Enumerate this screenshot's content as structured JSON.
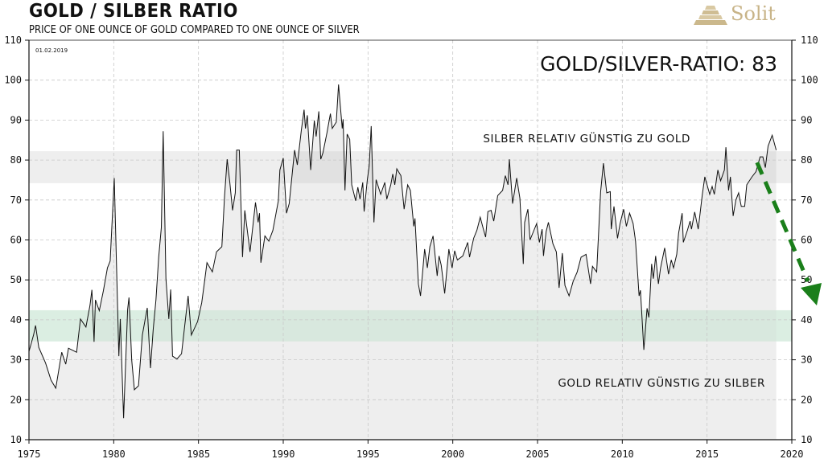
{
  "header": {
    "title": "GOLD / SILBER  RATIO",
    "subtitle": "PRICE OF ONE OUNCE OF GOLD COMPARED TO ONE OUNCE OF SILVER",
    "logo_text": "Solit"
  },
  "chart_data": {
    "type": "area",
    "title": "GOLD / SILBER RATIO",
    "date_label": "01.02.2019",
    "headline": "GOLD/SILVER-RATIO: 83",
    "xlim": [
      1975,
      2020
    ],
    "ylim": [
      10,
      110
    ],
    "xticks": [
      1975,
      1980,
      1985,
      1990,
      1995,
      2000,
      2005,
      2010,
      2015,
      2020
    ],
    "yticks": [
      10,
      20,
      30,
      40,
      50,
      60,
      70,
      80,
      90,
      100,
      110
    ],
    "grid": true,
    "bands": [
      {
        "name": "silver-cheap-band",
        "range": [
          74.2,
          82.2
        ],
        "label": "SILBER RELATIV GÜNSTIG ZU GOLD",
        "color": "#eeeeee"
      },
      {
        "name": "gold-cheap-band",
        "range": [
          34.6,
          42.4
        ],
        "label": "GOLD RELATIV GÜNSTIG ZU SILBER",
        "color": "#dbeee2"
      }
    ],
    "arrow": {
      "from": [
        2018.9,
        81
      ],
      "to": [
        2020.7,
        45
      ],
      "color": "#1a7f1a",
      "style": "dashed"
    },
    "colors": {
      "line": "#111111",
      "area": "#eeeeee"
    },
    "series": [
      {
        "name": "Gold/Silver Ratio",
        "points": [
          [
            1975.0,
            32.1
          ],
          [
            1975.27,
            36.2
          ],
          [
            1975.39,
            38.6
          ],
          [
            1975.58,
            33.1
          ],
          [
            1975.98,
            29.2
          ],
          [
            1976.3,
            24.9
          ],
          [
            1976.58,
            22.9
          ],
          [
            1976.93,
            31.9
          ],
          [
            1977.17,
            28.9
          ],
          [
            1977.33,
            32.9
          ],
          [
            1977.81,
            31.9
          ],
          [
            1978.04,
            40.2
          ],
          [
            1978.36,
            38.2
          ],
          [
            1978.6,
            43.6
          ],
          [
            1978.71,
            47.5
          ],
          [
            1978.84,
            34.5
          ],
          [
            1978.92,
            45.0
          ],
          [
            1979.15,
            42.3
          ],
          [
            1979.39,
            47.3
          ],
          [
            1979.63,
            53.0
          ],
          [
            1979.79,
            54.7
          ],
          [
            1980.03,
            75.5
          ],
          [
            1980.3,
            30.9
          ],
          [
            1980.39,
            40.2
          ],
          [
            1980.58,
            15.4
          ],
          [
            1980.82,
            42.6
          ],
          [
            1980.9,
            45.6
          ],
          [
            1981.06,
            29.9
          ],
          [
            1981.22,
            22.5
          ],
          [
            1981.46,
            23.5
          ],
          [
            1981.69,
            36.2
          ],
          [
            1981.98,
            43.0
          ],
          [
            1982.17,
            27.9
          ],
          [
            1982.33,
            37.6
          ],
          [
            1982.49,
            45.0
          ],
          [
            1982.65,
            55.7
          ],
          [
            1982.81,
            63.1
          ],
          [
            1982.92,
            87.2
          ],
          [
            1983.08,
            50.3
          ],
          [
            1983.25,
            40.2
          ],
          [
            1983.36,
            47.6
          ],
          [
            1983.47,
            30.9
          ],
          [
            1983.73,
            30.2
          ],
          [
            1984.0,
            31.5
          ],
          [
            1984.27,
            41.6
          ],
          [
            1984.39,
            46.0
          ],
          [
            1984.58,
            36.2
          ],
          [
            1984.95,
            39.6
          ],
          [
            1985.19,
            44.3
          ],
          [
            1985.35,
            49.3
          ],
          [
            1985.5,
            54.3
          ],
          [
            1985.82,
            52.0
          ],
          [
            1986.06,
            57.0
          ],
          [
            1986.38,
            58.3
          ],
          [
            1986.54,
            71.1
          ],
          [
            1986.69,
            80.2
          ],
          [
            1986.85,
            74.4
          ],
          [
            1987.01,
            67.4
          ],
          [
            1987.17,
            71.8
          ],
          [
            1987.25,
            82.5
          ],
          [
            1987.41,
            82.5
          ],
          [
            1987.6,
            55.7
          ],
          [
            1987.73,
            67.4
          ],
          [
            1988.04,
            57.0
          ],
          [
            1988.36,
            69.4
          ],
          [
            1988.52,
            64.4
          ],
          [
            1988.6,
            66.7
          ],
          [
            1988.68,
            54.3
          ],
          [
            1988.92,
            61.0
          ],
          [
            1989.15,
            59.7
          ],
          [
            1989.39,
            62.4
          ],
          [
            1989.71,
            69.8
          ],
          [
            1989.8,
            77.5
          ],
          [
            1990.0,
            80.5
          ],
          [
            1990.19,
            66.7
          ],
          [
            1990.35,
            69.1
          ],
          [
            1990.67,
            82.5
          ],
          [
            1990.83,
            78.8
          ],
          [
            1991.07,
            87.5
          ],
          [
            1991.23,
            92.6
          ],
          [
            1991.31,
            87.9
          ],
          [
            1991.42,
            91.2
          ],
          [
            1991.62,
            77.5
          ],
          [
            1991.83,
            89.9
          ],
          [
            1991.94,
            85.9
          ],
          [
            1992.1,
            92.2
          ],
          [
            1992.21,
            80.2
          ],
          [
            1992.34,
            81.8
          ],
          [
            1992.58,
            86.9
          ],
          [
            1992.78,
            91.6
          ],
          [
            1992.89,
            87.9
          ],
          [
            1993.13,
            89.5
          ],
          [
            1993.26,
            98.9
          ],
          [
            1993.48,
            87.9
          ],
          [
            1993.53,
            90.2
          ],
          [
            1993.64,
            72.4
          ],
          [
            1993.77,
            86.5
          ],
          [
            1993.92,
            85.2
          ],
          [
            1994.04,
            73.8
          ],
          [
            1994.27,
            69.8
          ],
          [
            1994.4,
            73.2
          ],
          [
            1994.53,
            70.2
          ],
          [
            1994.69,
            74.4
          ],
          [
            1994.77,
            67.1
          ],
          [
            1994.96,
            75.1
          ],
          [
            1995.07,
            78.5
          ],
          [
            1995.19,
            88.5
          ],
          [
            1995.35,
            64.4
          ],
          [
            1995.48,
            75.1
          ],
          [
            1995.75,
            71.4
          ],
          [
            1995.99,
            74.4
          ],
          [
            1996.11,
            70.2
          ],
          [
            1996.34,
            73.8
          ],
          [
            1996.46,
            76.5
          ],
          [
            1996.58,
            73.8
          ],
          [
            1996.7,
            77.8
          ],
          [
            1996.94,
            76.1
          ],
          [
            1997.13,
            67.7
          ],
          [
            1997.34,
            73.8
          ],
          [
            1997.5,
            72.4
          ],
          [
            1997.7,
            63.4
          ],
          [
            1997.77,
            65.4
          ],
          [
            1997.97,
            49.0
          ],
          [
            1998.1,
            46.0
          ],
          [
            1998.34,
            57.7
          ],
          [
            1998.5,
            53.0
          ],
          [
            1998.65,
            58.3
          ],
          [
            1998.84,
            61.0
          ],
          [
            1999.08,
            51.0
          ],
          [
            1999.19,
            56.0
          ],
          [
            1999.32,
            53.7
          ],
          [
            1999.52,
            46.6
          ],
          [
            1999.77,
            57.7
          ],
          [
            1999.96,
            53.0
          ],
          [
            2000.11,
            57.3
          ],
          [
            2000.27,
            55.0
          ],
          [
            2000.59,
            56.0
          ],
          [
            2000.88,
            59.4
          ],
          [
            2000.99,
            55.7
          ],
          [
            2001.23,
            60.4
          ],
          [
            2001.42,
            62.4
          ],
          [
            2001.62,
            65.7
          ],
          [
            2001.78,
            63.1
          ],
          [
            2001.94,
            60.7
          ],
          [
            2002.07,
            67.1
          ],
          [
            2002.26,
            67.4
          ],
          [
            2002.42,
            64.7
          ],
          [
            2002.65,
            71.1
          ],
          [
            2002.94,
            72.4
          ],
          [
            2003.1,
            76.1
          ],
          [
            2003.26,
            73.8
          ],
          [
            2003.34,
            80.2
          ],
          [
            2003.53,
            69.1
          ],
          [
            2003.77,
            75.5
          ],
          [
            2003.96,
            70.4
          ],
          [
            2004.16,
            54.0
          ],
          [
            2004.24,
            64.4
          ],
          [
            2004.43,
            67.7
          ],
          [
            2004.56,
            60.0
          ],
          [
            2004.95,
            64.1
          ],
          [
            2005.11,
            59.4
          ],
          [
            2005.27,
            62.7
          ],
          [
            2005.35,
            56.0
          ],
          [
            2005.51,
            62.1
          ],
          [
            2005.64,
            64.4
          ],
          [
            2005.91,
            59.0
          ],
          [
            2006.11,
            57.0
          ],
          [
            2006.27,
            48.0
          ],
          [
            2006.46,
            56.7
          ],
          [
            2006.62,
            48.6
          ],
          [
            2006.86,
            46.0
          ],
          [
            2007.1,
            49.6
          ],
          [
            2007.34,
            52.0
          ],
          [
            2007.57,
            55.7
          ],
          [
            2007.86,
            56.4
          ],
          [
            2008.13,
            49.0
          ],
          [
            2008.24,
            53.4
          ],
          [
            2008.49,
            52.0
          ],
          [
            2008.72,
            72.1
          ],
          [
            2008.89,
            79.2
          ],
          [
            2009.08,
            71.8
          ],
          [
            2009.29,
            72.1
          ],
          [
            2009.35,
            62.7
          ],
          [
            2009.51,
            68.4
          ],
          [
            2009.72,
            60.4
          ],
          [
            2009.87,
            64.1
          ],
          [
            2010.08,
            67.7
          ],
          [
            2010.24,
            63.4
          ],
          [
            2010.43,
            66.7
          ],
          [
            2010.64,
            64.1
          ],
          [
            2010.78,
            59.7
          ],
          [
            2010.99,
            46.0
          ],
          [
            2011.07,
            47.4
          ],
          [
            2011.27,
            32.5
          ],
          [
            2011.46,
            42.9
          ],
          [
            2011.57,
            40.6
          ],
          [
            2011.73,
            54.0
          ],
          [
            2011.83,
            50.3
          ],
          [
            2011.97,
            56.0
          ],
          [
            2012.13,
            49.0
          ],
          [
            2012.26,
            53.0
          ],
          [
            2012.5,
            58.0
          ],
          [
            2012.73,
            51.4
          ],
          [
            2012.89,
            55.0
          ],
          [
            2013.02,
            53.0
          ],
          [
            2013.21,
            56.4
          ],
          [
            2013.32,
            61.7
          ],
          [
            2013.53,
            66.7
          ],
          [
            2013.6,
            59.4
          ],
          [
            2013.84,
            62.4
          ],
          [
            2014.0,
            64.7
          ],
          [
            2014.08,
            62.7
          ],
          [
            2014.27,
            67.0
          ],
          [
            2014.48,
            62.7
          ],
          [
            2014.72,
            71.4
          ],
          [
            2014.87,
            75.8
          ],
          [
            2015.16,
            71.4
          ],
          [
            2015.3,
            73.4
          ],
          [
            2015.43,
            71.4
          ],
          [
            2015.64,
            77.5
          ],
          [
            2015.8,
            74.8
          ],
          [
            2016.02,
            77.5
          ],
          [
            2016.11,
            83.2
          ],
          [
            2016.27,
            72.4
          ],
          [
            2016.38,
            75.8
          ],
          [
            2016.54,
            66.0
          ],
          [
            2016.7,
            70.0
          ],
          [
            2016.86,
            71.8
          ],
          [
            2017.02,
            68.4
          ],
          [
            2017.22,
            68.4
          ],
          [
            2017.34,
            73.8
          ],
          [
            2017.65,
            75.8
          ],
          [
            2017.89,
            77.1
          ],
          [
            2018.13,
            80.8
          ],
          [
            2018.29,
            80.8
          ],
          [
            2018.44,
            78.1
          ],
          [
            2018.6,
            83.5
          ],
          [
            2018.84,
            86.2
          ],
          [
            2019.08,
            82.5
          ]
        ]
      }
    ]
  }
}
